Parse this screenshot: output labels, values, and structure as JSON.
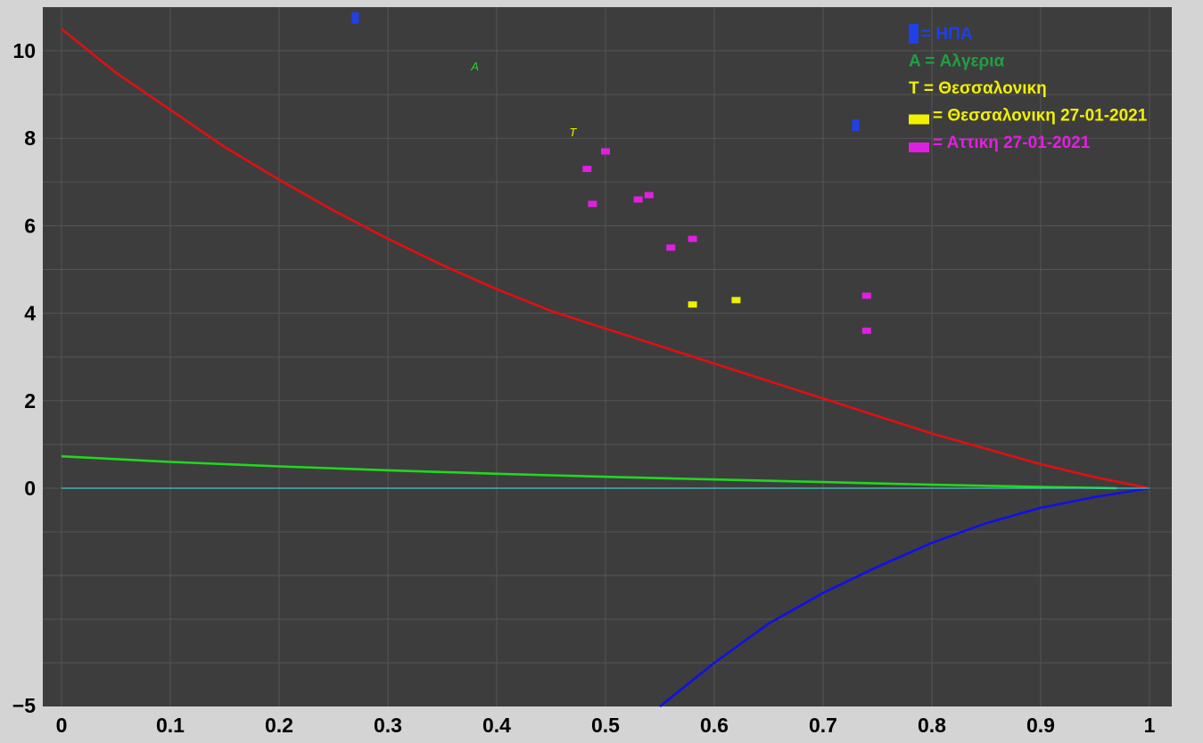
{
  "chart_data": {
    "type": "scatter",
    "title": "",
    "xlabel": "",
    "ylabel": "",
    "xlim": [
      0,
      1
    ],
    "ylim": [
      -5,
      11
    ],
    "grid": true,
    "x_ticks": [
      "0",
      "0.1",
      "0.2",
      "0.3",
      "0.4",
      "0.5",
      "0.6",
      "0.7",
      "0.8",
      "0.9",
      "1"
    ],
    "x_tick_values": [
      0,
      0.1,
      0.2,
      0.3,
      0.4,
      0.5,
      0.6,
      0.7,
      0.8,
      0.9,
      1
    ],
    "y_ticks": [
      "10",
      "8",
      "6",
      "4",
      "2",
      "0",
      "−5"
    ],
    "y_tick_values": [
      10,
      8,
      6,
      4,
      2,
      0,
      -5
    ],
    "curves": [
      {
        "color": "#e01010",
        "x": [
          0,
          0.05,
          0.1,
          0.15,
          0.2,
          0.25,
          0.3,
          0.35,
          0.4,
          0.45,
          0.5,
          0.55,
          0.6,
          0.65,
          0.7,
          0.75,
          0.8,
          0.85,
          0.9,
          0.95,
          1.0
        ],
        "y": [
          10.5,
          9.5,
          8.65,
          7.8,
          7.05,
          6.35,
          5.7,
          5.1,
          4.55,
          4.05,
          3.65,
          3.25,
          2.85,
          2.45,
          2.05,
          1.65,
          1.25,
          0.9,
          0.55,
          0.25,
          0
        ]
      },
      {
        "color": "#20d820",
        "x": [
          0,
          0.1,
          0.2,
          0.3,
          0.4,
          0.5,
          0.6,
          0.7,
          0.8,
          0.9,
          0.97
        ],
        "y": [
          0.73,
          0.6,
          0.5,
          0.41,
          0.33,
          0.26,
          0.2,
          0.14,
          0.08,
          0.03,
          0.0
        ]
      },
      {
        "color": "#1010e8",
        "x": [
          0.55,
          0.6,
          0.65,
          0.7,
          0.75,
          0.8,
          0.85,
          0.9,
          0.95,
          1.0
        ],
        "y": [
          -5,
          -4.0,
          -3.1,
          -2.4,
          -1.8,
          -1.25,
          -0.8,
          -0.45,
          -0.2,
          0
        ]
      },
      {
        "color": "#40c8c8",
        "x": [
          0,
          1
        ],
        "y": [
          0,
          0
        ]
      }
    ],
    "points": [
      {
        "group": "usa",
        "x": 0.27,
        "y": 10.75,
        "color": "#2040e8"
      },
      {
        "group": "usa",
        "x": 0.73,
        "y": 8.3,
        "color": "#2040e8"
      },
      {
        "group": "thessaloniki",
        "x": 0.58,
        "y": 4.2,
        "color": "#f0f000"
      },
      {
        "group": "thessaloniki",
        "x": 0.62,
        "y": 4.3,
        "color": "#f0f000"
      },
      {
        "group": "attica",
        "x": 0.5,
        "y": 7.7,
        "color": "#e020e0"
      },
      {
        "group": "attica",
        "x": 0.483,
        "y": 7.3,
        "color": "#e020e0"
      },
      {
        "group": "attica",
        "x": 0.488,
        "y": 6.5,
        "color": "#e020e0"
      },
      {
        "group": "attica",
        "x": 0.53,
        "y": 6.6,
        "color": "#e020e0"
      },
      {
        "group": "attica",
        "x": 0.54,
        "y": 6.7,
        "color": "#e020e0"
      },
      {
        "group": "attica",
        "x": 0.56,
        "y": 5.5,
        "color": "#e020e0"
      },
      {
        "group": "attica",
        "x": 0.58,
        "y": 5.7,
        "color": "#e020e0"
      },
      {
        "group": "attica",
        "x": 0.74,
        "y": 4.4,
        "color": "#e020e0"
      },
      {
        "group": "attica",
        "x": 0.74,
        "y": 3.6,
        "color": "#e020e0"
      }
    ],
    "annotations": [
      {
        "text": "A",
        "x": 0.38,
        "y": 9.65,
        "color": "#20d820"
      },
      {
        "text": "T",
        "x": 0.47,
        "y": 8.15,
        "color": "#f0f000"
      }
    ],
    "legend": {
      "placement": "top-right",
      "entries": [
        {
          "marker": "usa",
          "label": "= ΗΠΑ",
          "color": "#2040e8"
        },
        {
          "marker": "none",
          "label": "A = Αλγερια",
          "color": "#20a040"
        },
        {
          "marker": "none",
          "label": "T = Θεσσαλονικη",
          "color": "#f0f000"
        },
        {
          "marker": "thessaloniki",
          "label": "= Θεσσαλονικη 27-01-2021",
          "color": "#f0f000"
        },
        {
          "marker": "attica",
          "label": "= Αττικη 27-01-2021",
          "color": "#e020e0"
        }
      ]
    }
  },
  "colors": {
    "plot_background": "#3d3d3d",
    "page_background": "#d4d4d4",
    "grid": "#555555"
  }
}
